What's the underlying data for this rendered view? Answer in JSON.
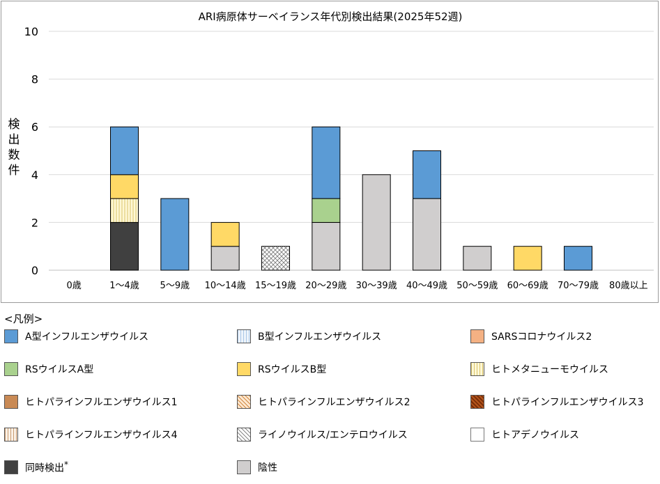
{
  "chart_data": {
    "type": "bar",
    "stacked": true,
    "title": "ARI病原体サーベイランス年代別検出結果(2025年52週)",
    "ylabel": "検出数件",
    "xlabel": "",
    "ylim": [
      0,
      10
    ],
    "yticks": [
      0,
      2,
      4,
      6,
      8,
      10
    ],
    "grid": true,
    "categories": [
      "0歳",
      "1～4歳",
      "5～9歳",
      "10～14歳",
      "15～19歳",
      "20～29歳",
      "30～39歳",
      "40～49歳",
      "50～59歳",
      "60～69歳",
      "70～79歳",
      "80歳以上"
    ],
    "series": [
      {
        "name": "同時検出",
        "key": "simultaneous",
        "values": [
          0,
          2,
          0,
          0,
          0,
          0,
          0,
          0,
          0,
          0,
          0,
          0
        ]
      },
      {
        "name": "陰性",
        "key": "negative",
        "values": [
          0,
          0,
          0,
          1,
          0,
          2,
          4,
          3,
          1,
          0,
          0,
          0
        ]
      },
      {
        "name": "ライノウイルス/エンテロウイルス",
        "key": "rhino",
        "values": [
          0,
          0,
          0,
          0,
          1,
          0,
          0,
          0,
          0,
          0,
          0,
          0
        ]
      },
      {
        "name": "ヒトメタニューモウイルス",
        "key": "hmpv",
        "values": [
          0,
          1,
          0,
          0,
          0,
          0,
          0,
          0,
          0,
          0,
          0,
          0
        ]
      },
      {
        "name": "RSウイルスA型",
        "key": "rsa",
        "values": [
          0,
          0,
          0,
          0,
          0,
          1,
          0,
          0,
          0,
          0,
          0,
          0
        ]
      },
      {
        "name": "RSウイルスB型",
        "key": "rsb",
        "values": [
          0,
          1,
          0,
          1,
          0,
          0,
          0,
          0,
          0,
          1,
          0,
          0
        ]
      },
      {
        "name": "A型インフルエンザウイルス",
        "key": "fluA",
        "values": [
          0,
          2,
          3,
          0,
          0,
          3,
          0,
          2,
          0,
          0,
          1,
          0
        ]
      }
    ]
  },
  "legend": {
    "title": "<凡例>",
    "items": [
      {
        "label": "A型インフルエンザウイルス",
        "key": "fluA",
        "color": "#5b9bd5"
      },
      {
        "label": "B型インフルエンザウイルス",
        "key": "fluB",
        "color": "#dce9f7"
      },
      {
        "label": "SARSコロナウイルス2",
        "key": "sars",
        "color": "#f4b183"
      },
      {
        "label": "RSウイルスA型",
        "key": "rsa",
        "color": "#a9d18e"
      },
      {
        "label": "RSウイルスB型",
        "key": "rsb",
        "color": "#ffd966"
      },
      {
        "label": "ヒトメタニューモウイルス",
        "key": "hmpv",
        "color": "#fff2cc"
      },
      {
        "label": "ヒトパラインフルエンザウイルス1",
        "key": "hpiv1",
        "color": "#c98a55"
      },
      {
        "label": "ヒトパラインフルエンザウイルス2",
        "key": "hpiv2",
        "color": "#f6c89c"
      },
      {
        "label": "ヒトパラインフルエンザウイルス3",
        "key": "hpiv3",
        "color": "#8b3a0e"
      },
      {
        "label": "ヒトパラインフルエンザウイルス4",
        "key": "hpiv4",
        "color": "#f7e0cc"
      },
      {
        "label": "ライノウイルス/エンテロウイルス",
        "key": "rhino",
        "color": "#ffffff"
      },
      {
        "label": "ヒトアデノウイルス",
        "key": "adeno",
        "color": "#ffffff"
      },
      {
        "label": "同時検出",
        "key": "simultaneous",
        "color": "#404040",
        "note": "*"
      },
      {
        "label": "陰性",
        "key": "negative",
        "color": "#d0cece"
      }
    ]
  }
}
